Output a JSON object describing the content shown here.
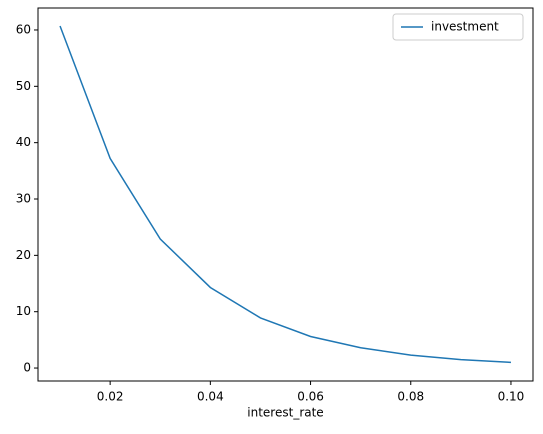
{
  "chart_data": {
    "type": "line",
    "xlabel": "interest_rate",
    "x": [
      0.01,
      0.02,
      0.03,
      0.04,
      0.05,
      0.06,
      0.07,
      0.08,
      0.09,
      0.1
    ],
    "series": [
      {
        "name": "investment",
        "color": "#1f77b4",
        "values": [
          60.7,
          37.2,
          22.9,
          14.3,
          8.9,
          5.6,
          3.6,
          2.3,
          1.5,
          1.0
        ]
      }
    ],
    "xlim": [
      0.0056,
      0.1044
    ],
    "ylim": [
      -2.3,
      63.9
    ],
    "xticks": [
      0.02,
      0.04,
      0.06,
      0.08,
      {
        "value": 0.1,
        "label": "0.10"
      }
    ],
    "yticks": [
      0,
      10,
      20,
      30,
      40,
      50,
      60
    ],
    "grid": false,
    "legend": "upper right"
  }
}
